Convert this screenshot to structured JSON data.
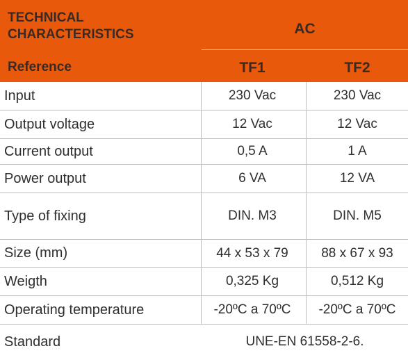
{
  "header": {
    "title_line1": "TECHNICAL",
    "title_line2": "CHARACTERISTICS",
    "group": "AC",
    "reference_label": "Reference",
    "columns": [
      "TF1",
      "TF2"
    ]
  },
  "rows": [
    {
      "label": "Input",
      "tf1": "230 Vac",
      "tf2": "230 Vac"
    },
    {
      "label": "Output voltage",
      "tf1": "12 Vac",
      "tf2": "12 Vac"
    },
    {
      "label": "Current output",
      "tf1": "0,5 A",
      "tf2": "1 A"
    },
    {
      "label": "Power output",
      "tf1": "6 VA",
      "tf2": "12 VA"
    },
    {
      "label": "Type of fixing",
      "tf1": "DIN. M3",
      "tf2": "DIN. M5"
    },
    {
      "label": "Size  (mm)",
      "tf1": "44 x 53 x 79",
      "tf2": "88 x 67 x 93"
    },
    {
      "label": "Weigth",
      "tf1": "0,325 Kg",
      "tf2": "0,512 Kg"
    },
    {
      "label": "Operating temperature",
      "tf1": "-20ºC a 70ºC",
      "tf2": "-20ºC a 70ºC"
    }
  ],
  "standard": {
    "label": "Standard",
    "value": "UNE-EN 61558-2-6."
  },
  "colors": {
    "header_bg": "#E8590C",
    "header_text": "#3b2a22"
  }
}
